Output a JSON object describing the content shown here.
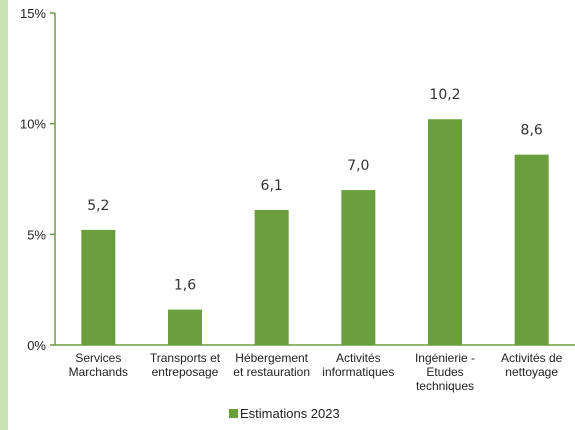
{
  "chart_data": {
    "type": "bar",
    "categories": [
      [
        "Services",
        "Marchands"
      ],
      [
        "Transports et",
        "entreposage"
      ],
      [
        "Hébergement",
        "et restauration"
      ],
      [
        "Activités",
        "informatiques"
      ],
      [
        "Ingénierie -",
        "Etudes",
        "techniques"
      ],
      [
        "Activités de",
        "nettoyage"
      ]
    ],
    "series": [
      {
        "name": "Estimations 2023",
        "values": [
          5.2,
          1.6,
          6.1,
          7.0,
          10.2,
          8.6
        ],
        "labels": [
          "5,2",
          "1,6",
          "6,1",
          "7,0",
          "10,2",
          "8,6"
        ]
      }
    ],
    "ylim": [
      0,
      15
    ],
    "yticks": [
      0,
      5,
      10,
      15
    ],
    "ytick_labels": [
      "0%",
      "5%",
      "10%",
      "15%"
    ],
    "title": "",
    "xlabel": "",
    "ylabel": "",
    "grid": false,
    "legend_position": "bottom"
  },
  "colors": {
    "bar": "#6a9e3c",
    "axis": "#6a9e3c",
    "stripe": "#c7e3b3"
  }
}
